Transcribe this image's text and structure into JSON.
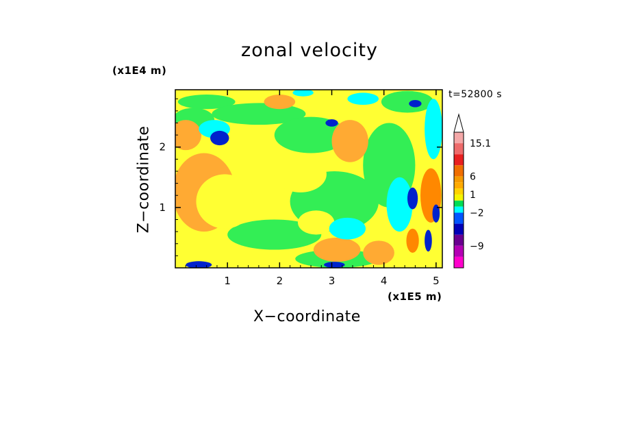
{
  "chart_data": {
    "type": "heatmap",
    "title": "zonal velocity",
    "xlabel": "X−coordinate",
    "ylabel": "Z−coordinate",
    "x_multiplier": "(x1E5 m)",
    "y_multiplier": "(x1E4 m)",
    "annotation": "t=52800 s",
    "xlim": [
      0,
      5.12
    ],
    "ylim": [
      0,
      2.95
    ],
    "x_ticks": [
      "1",
      "2",
      "3",
      "4",
      "5"
    ],
    "y_ticks": [
      "1",
      "2"
    ],
    "colorbar": {
      "levels": [
        "15.1",
        "6",
        "1",
        "−2",
        "−9"
      ],
      "colors": [
        "#ffffff",
        "#f4a8a8",
        "#ee6b6b",
        "#e82020",
        "#f06e00",
        "#f59a00",
        "#ffaa00",
        "#ffd200",
        "#f5f500",
        "#00dd55",
        "#00ffff",
        "#0055ff",
        "#0000b8",
        "#6a0090",
        "#b400b4",
        "#ff00cc"
      ]
    },
    "field_colors": {
      "orange": "#ffaa33",
      "yellow": "#ffff33",
      "green": "#33ee55",
      "cyan": "#00ffff",
      "blue": "#0022cc",
      "dark_orange": "#ff8800"
    }
  }
}
